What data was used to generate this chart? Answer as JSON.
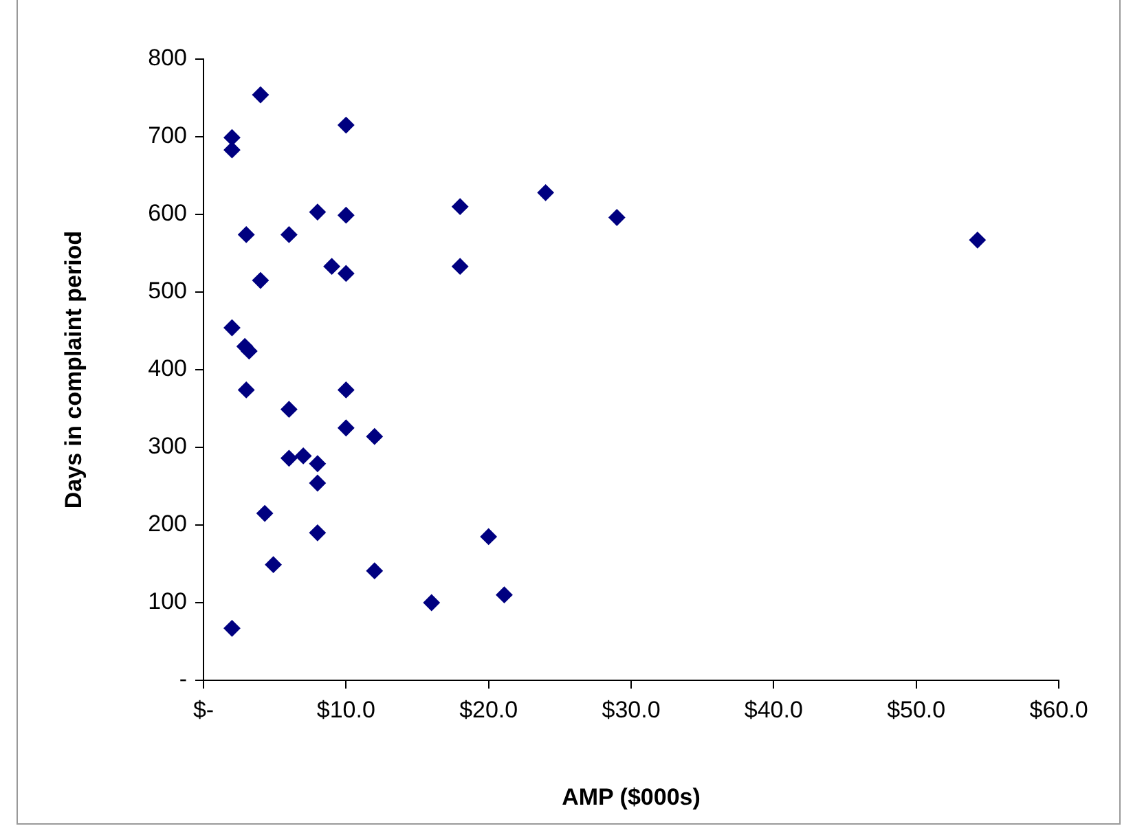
{
  "chart_data": {
    "type": "scatter",
    "xlabel": "AMP ($000s)",
    "ylabel": "Days in complaint period",
    "marker": "diamond",
    "grid": false,
    "legend": false,
    "xlim": [
      0,
      60
    ],
    "xticks": [
      {
        "value": 0,
        "label": "$-"
      },
      {
        "value": 10,
        "label": "$10.0"
      },
      {
        "value": 20,
        "label": "$20.0"
      },
      {
        "value": 30,
        "label": "$30.0"
      },
      {
        "value": 40,
        "label": "$40.0"
      },
      {
        "value": 50,
        "label": "$50.0"
      },
      {
        "value": 60,
        "label": "$60.0"
      }
    ],
    "ylim": [
      0,
      800
    ],
    "yticks": [
      {
        "value": 0,
        "label": "-"
      },
      100,
      200,
      300,
      400,
      500,
      600,
      700,
      800
    ],
    "series": [
      {
        "color": "#000080",
        "x": [
          4,
          2,
          2,
          10,
          8,
          10,
          3,
          6,
          9,
          10,
          4,
          2,
          2.9,
          3.2,
          3,
          10,
          6,
          10,
          12,
          6,
          7,
          8,
          8,
          4.3,
          8,
          4.9,
          12,
          16,
          2,
          20,
          18,
          24,
          29,
          54.3,
          18,
          21.1
        ],
        "values": [
          754,
          699,
          683,
          715,
          603,
          599,
          574,
          574,
          533,
          524,
          515,
          454,
          430,
          424,
          374,
          374,
          349,
          325,
          314,
          286,
          289,
          279,
          254,
          215,
          190,
          149,
          141,
          100,
          67,
          185,
          610,
          628,
          596,
          567,
          533,
          110
        ]
      }
    ]
  }
}
